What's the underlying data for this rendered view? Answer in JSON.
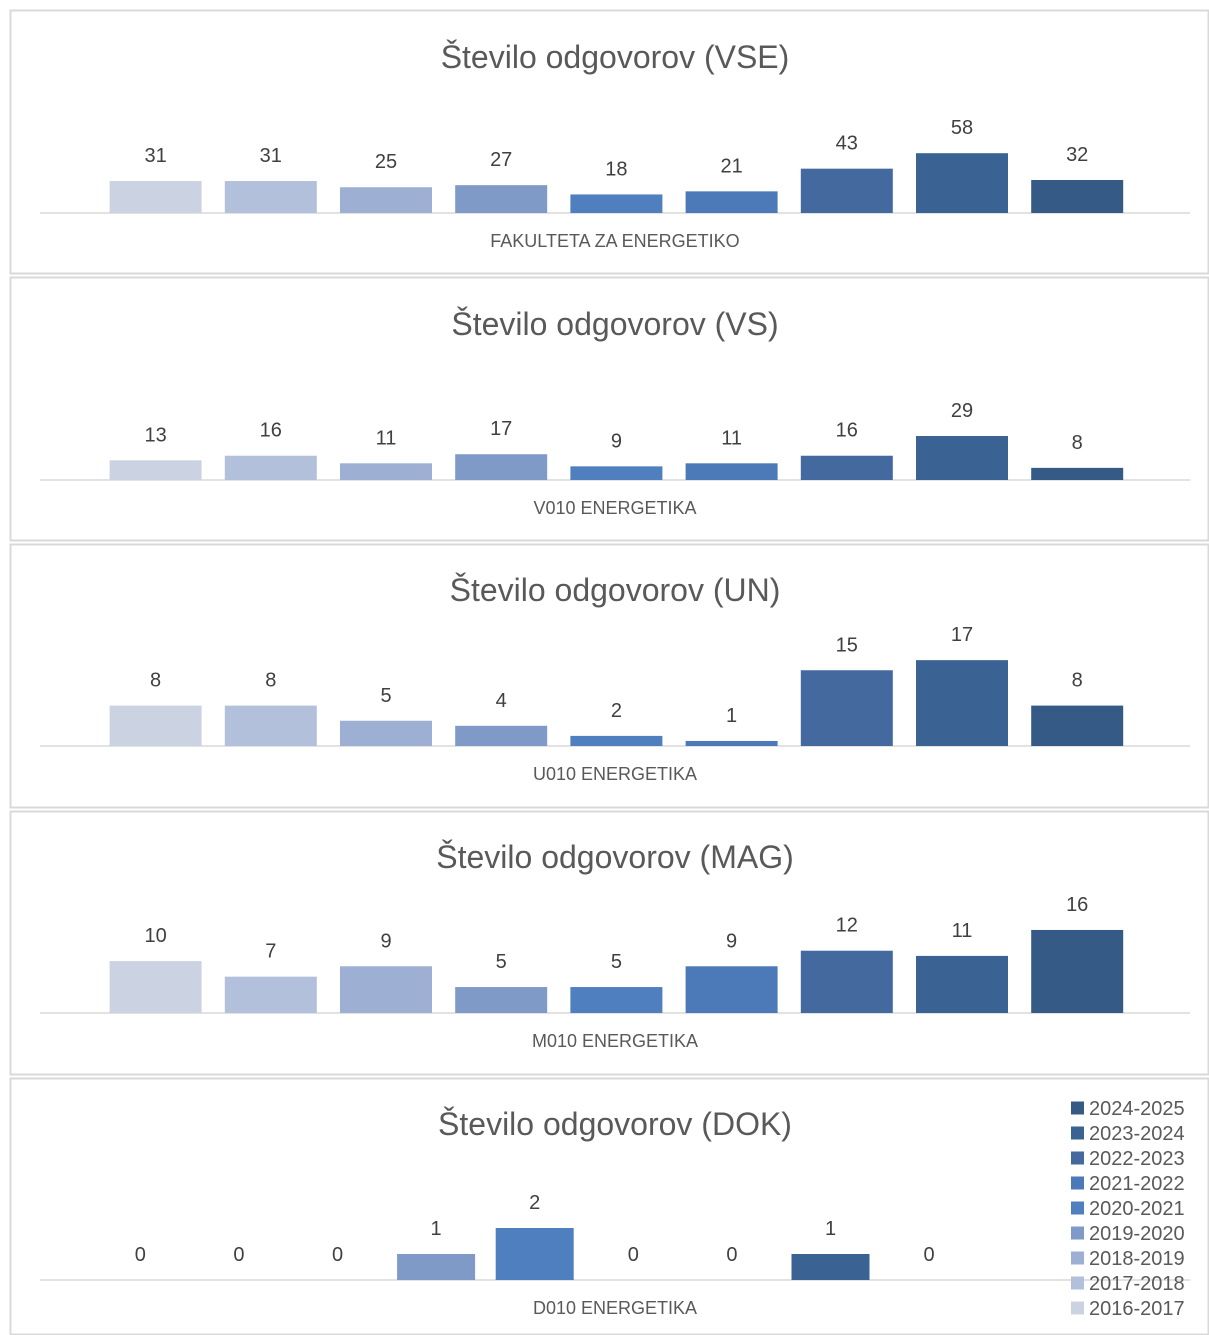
{
  "series_colors": [
    "#cbd3e3",
    "#b3c0db",
    "#9db0d3",
    "#7f9ac6",
    "#4f7fbf",
    "#4c7ab8",
    "#43699f",
    "#3a6393",
    "#345a85"
  ],
  "chart_data": [
    {
      "type": "bar",
      "title": "Število odgovorov (VSE)",
      "xlabel": "FAKULTETA ZA ENERGETIKO",
      "series_names": [
        "2016-2017",
        "2017-2018",
        "2018-2019",
        "2019-2020",
        "2020-2021",
        "2021-2022",
        "2022-2023",
        "2023-2024",
        "2024-2025"
      ],
      "values": [
        31,
        31,
        25,
        27,
        18,
        21,
        43,
        58,
        32
      ],
      "data_labels": true
    },
    {
      "type": "bar",
      "title": "Število odgovorov (VS)",
      "xlabel": "V010 ENERGETIKA",
      "series_names": [
        "2016-2017",
        "2017-2018",
        "2018-2019",
        "2019-2020",
        "2020-2021",
        "2021-2022",
        "2022-2023",
        "2023-2024",
        "2024-2025"
      ],
      "values": [
        13,
        16,
        11,
        17,
        9,
        11,
        16,
        29,
        8
      ],
      "data_labels": true
    },
    {
      "type": "bar",
      "title": "Število odgovorov (UN)",
      "xlabel": "U010 ENERGETIKA",
      "series_names": [
        "2016-2017",
        "2017-2018",
        "2018-2019",
        "2019-2020",
        "2020-2021",
        "2021-2022",
        "2022-2023",
        "2023-2024",
        "2024-2025"
      ],
      "values": [
        8,
        8,
        5,
        4,
        2,
        1,
        15,
        17,
        8
      ],
      "data_labels": true
    },
    {
      "type": "bar",
      "title": "Število odgovorov (MAG)",
      "xlabel": "M010 ENERGETIKA",
      "series_names": [
        "2016-2017",
        "2017-2018",
        "2018-2019",
        "2019-2020",
        "2020-2021",
        "2021-2022",
        "2022-2023",
        "2023-2024",
        "2024-2025"
      ],
      "values": [
        10,
        7,
        9,
        5,
        5,
        9,
        12,
        11,
        16
      ],
      "data_labels": true
    },
    {
      "type": "bar",
      "title": "Število odgovorov (DOK)",
      "xlabel": "D010 ENERGETIKA",
      "series_names": [
        "2016-2017",
        "2017-2018",
        "2018-2019",
        "2019-2020",
        "2020-2021",
        "2021-2022",
        "2022-2023",
        "2023-2024",
        "2024-2025"
      ],
      "values": [
        0,
        0,
        0,
        1,
        2,
        0,
        0,
        1,
        0
      ],
      "data_labels": true,
      "legend": {
        "placement": "right",
        "entries": [
          "2024-2025",
          "2023-2024",
          "2022-2023",
          "2021-2022",
          "2020-2021",
          "2019-2020",
          "2018-2019",
          "2017-2018",
          "2016-2017"
        ]
      }
    }
  ]
}
